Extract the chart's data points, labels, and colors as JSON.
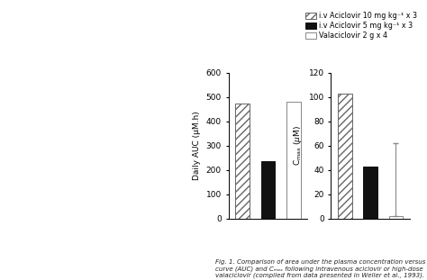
{
  "auc_values": [
    475,
    235,
    480
  ],
  "cmax_values": [
    103,
    43,
    2
  ],
  "cmax_error_half": 30,
  "auc_ylim": [
    0,
    600
  ],
  "cmax_ylim": [
    0,
    120
  ],
  "auc_yticks": [
    0,
    100,
    200,
    300,
    400,
    500,
    600
  ],
  "cmax_yticks": [
    0,
    20,
    40,
    60,
    80,
    100,
    120
  ],
  "auc_ylabel": "Daily AUC (μM.h)",
  "cmax_ylabel": "C_max (μM)",
  "legend_labels": [
    "i.v Aciclovir 10 mg kg⁻¹ x 3",
    "i.v Aciclovir 5 mg kg⁻¹ x 3",
    "Valaciclovir 2 g x 4"
  ],
  "hatch_pattern": "////",
  "fig_caption_line1": "Fig. 1. Comparison of area under the plasma concentration versus time",
  "fig_caption_line2": "curve (AUC) and Cₘₐₓ following intravenous aciclovir or high-dose",
  "fig_caption_line3": "valaciclovir (compiled from data presented in Weller et al., 1993).",
  "background_color": "#ffffff",
  "bar_colors": [
    "white",
    "#111111",
    "#ffffff"
  ],
  "bar_edge_colors": [
    "#666666",
    "#111111",
    "#888888"
  ],
  "hatch_color": "#888888"
}
